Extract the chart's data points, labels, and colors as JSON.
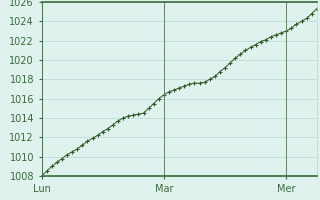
{
  "background_color": "#dff2ee",
  "plot_bg_color": "#dff2ee",
  "grid_color": "#b8d8d0",
  "line_color": "#2d5a27",
  "marker_color": "#2d5a27",
  "axis_line_color": "#3a6b3a",
  "vline_color": "#5a8a5a",
  "ylim": [
    1008,
    1026
  ],
  "yticks": [
    1008,
    1010,
    1012,
    1014,
    1016,
    1018,
    1020,
    1022,
    1024,
    1026
  ],
  "xtick_labels": [
    "Lun",
    "Mar",
    "Mer"
  ],
  "xtick_positions": [
    0,
    24,
    48
  ],
  "xlim": [
    0,
    54
  ],
  "x_values": [
    0,
    1,
    2,
    3,
    4,
    5,
    6,
    7,
    8,
    9,
    10,
    11,
    12,
    13,
    14,
    15,
    16,
    17,
    18,
    19,
    20,
    21,
    22,
    23,
    24,
    25,
    26,
    27,
    28,
    29,
    30,
    31,
    32,
    33,
    34,
    35,
    36,
    37,
    38,
    39,
    40,
    41,
    42,
    43,
    44,
    45,
    46,
    47,
    48,
    49,
    50,
    51,
    52,
    53,
    54
  ],
  "y_values": [
    1008.0,
    1008.5,
    1009.0,
    1009.4,
    1009.8,
    1010.2,
    1010.5,
    1010.8,
    1011.2,
    1011.6,
    1011.9,
    1012.2,
    1012.6,
    1012.9,
    1013.3,
    1013.7,
    1014.0,
    1014.2,
    1014.3,
    1014.4,
    1014.5,
    1015.0,
    1015.5,
    1016.0,
    1016.4,
    1016.7,
    1016.9,
    1017.1,
    1017.3,
    1017.5,
    1017.6,
    1017.6,
    1017.7,
    1018.0,
    1018.3,
    1018.8,
    1019.2,
    1019.7,
    1020.2,
    1020.6,
    1021.0,
    1021.3,
    1021.6,
    1021.9,
    1022.1,
    1022.4,
    1022.6,
    1022.8,
    1023.0,
    1023.3,
    1023.7,
    1024.0,
    1024.3,
    1024.8,
    1025.3
  ],
  "tick_fontsize": 7,
  "label_color": "#3a6b3a"
}
